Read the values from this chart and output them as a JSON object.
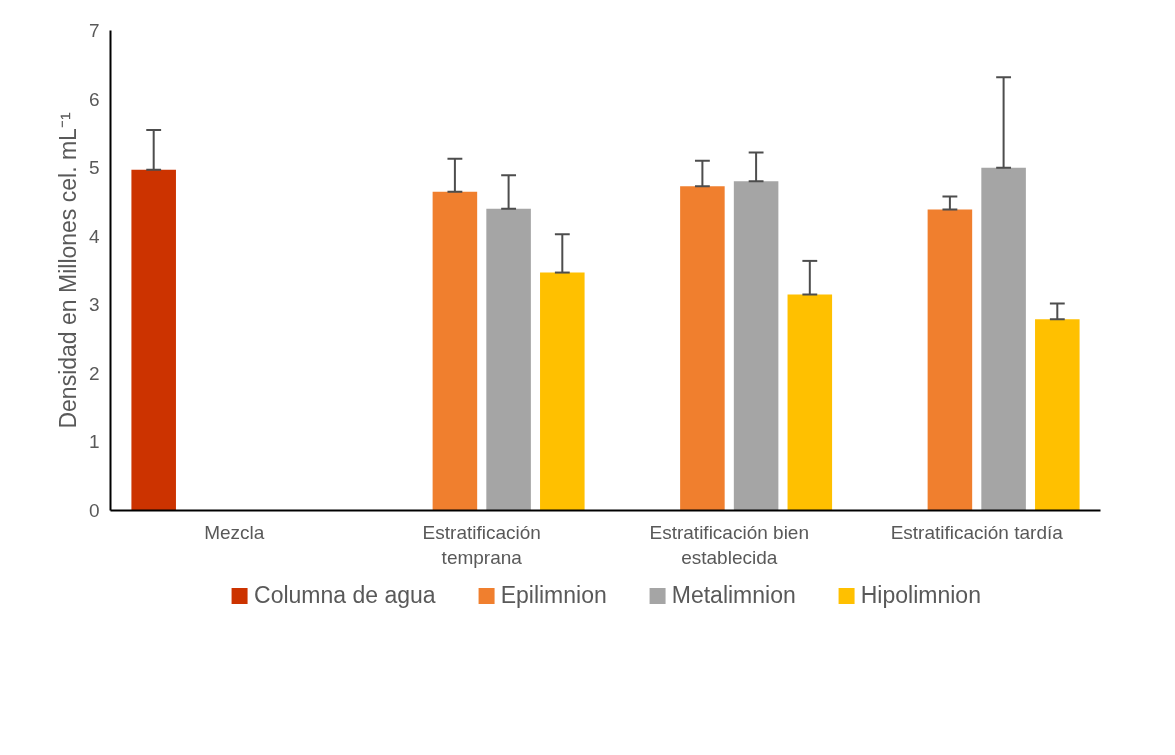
{
  "chart_data": {
    "type": "bar",
    "ylabel": "Densidad en Millones cel. mL⁻¹",
    "categories": [
      "Mezcla",
      "Estratificación temprana",
      "Estratificación bien establecida",
      "Estratificación tardía"
    ],
    "series": [
      {
        "name": "Columna de agua",
        "color": "#cc3300",
        "values": [
          4.97,
          null,
          null,
          null
        ],
        "errors": [
          [
            4.97,
            5.55
          ],
          null,
          null,
          null
        ]
      },
      {
        "name": "Epilimnion",
        "color": "#f07f2e",
        "values": [
          null,
          4.65,
          4.73,
          4.39
        ],
        "errors": [
          null,
          [
            4.65,
            5.13
          ],
          [
            4.73,
            5.1
          ],
          [
            4.39,
            4.58
          ]
        ]
      },
      {
        "name": "Metalimnion",
        "color": "#a5a5a5",
        "values": [
          null,
          4.4,
          4.8,
          5.0
        ],
        "errors": [
          null,
          [
            4.4,
            4.89
          ],
          [
            4.8,
            5.22
          ],
          [
            5.0,
            6.32
          ]
        ]
      },
      {
        "name": "Hipolimnion",
        "color": "#ffc000",
        "values": [
          null,
          3.47,
          3.15,
          2.79
        ],
        "errors": [
          null,
          [
            3.47,
            4.03
          ],
          [
            3.15,
            3.64
          ],
          [
            2.79,
            3.02
          ]
        ]
      }
    ],
    "ylim": [
      0,
      7
    ],
    "yticks": [
      0,
      1,
      2,
      3,
      4,
      5,
      6,
      7
    ],
    "grid": false,
    "legend": "bottom"
  }
}
